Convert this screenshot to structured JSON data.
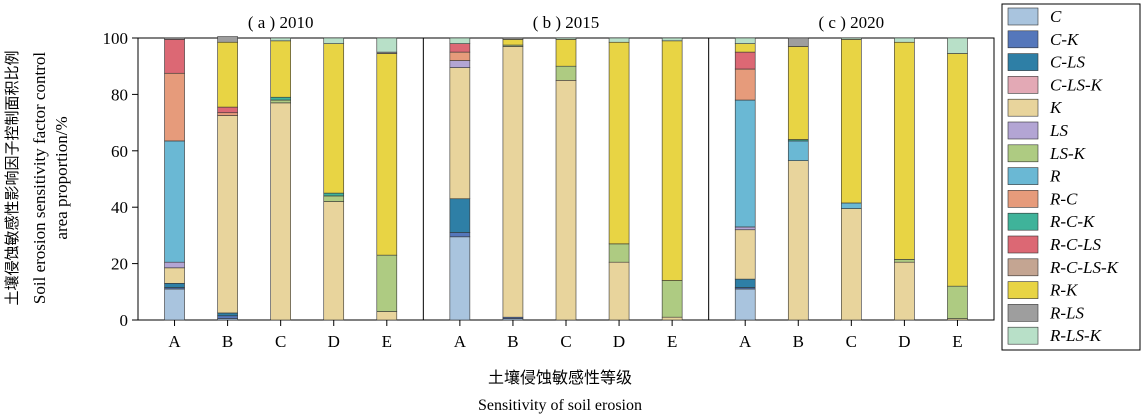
{
  "chart_data": {
    "type": "bar",
    "stacked": true,
    "ylabel_cn": "土壤侵蚀敏感性影响因子控制面积比例",
    "ylabel_en_line1": "Soil erosion sensitivity factor control",
    "ylabel_en_line2": "area proportion/%",
    "xlabel_cn": "土壤侵蚀敏感性等级",
    "xlabel_en": "Sensitivity of soil erosion",
    "ylim": [
      0,
      100
    ],
    "yticks": [
      "0",
      "20",
      "40",
      "60",
      "80",
      "100"
    ],
    "categories": [
      "A",
      "B",
      "C",
      "D",
      "E"
    ],
    "legend_placement": "right",
    "series": [
      {
        "name": "C",
        "color": "#a9c4de"
      },
      {
        "name": "C-K",
        "color": "#5577bb"
      },
      {
        "name": "C-LS",
        "color": "#2e7fa6"
      },
      {
        "name": "C-LS-K",
        "color": "#e3a9b5"
      },
      {
        "name": "K",
        "color": "#e8d49c"
      },
      {
        "name": "LS",
        "color": "#b3a5d4"
      },
      {
        "name": "LS-K",
        "color": "#aecb82"
      },
      {
        "name": "R",
        "color": "#6ab8d4"
      },
      {
        "name": "R-C",
        "color": "#e69b7b"
      },
      {
        "name": "R-C-K",
        "color": "#3fb39a"
      },
      {
        "name": "R-C-LS",
        "color": "#dc6874"
      },
      {
        "name": "R-C-LS-K",
        "color": "#c4a592"
      },
      {
        "name": "R-K",
        "color": "#e8d444"
      },
      {
        "name": "R-LS",
        "color": "#9e9e9e"
      },
      {
        "name": "R-LS-K",
        "color": "#b8e0c8"
      }
    ],
    "panels": [
      {
        "title": "( a ) 2010",
        "bars": [
          {
            "category": "A",
            "segments": {
              "C": 11,
              "C-K": 0.5,
              "C-LS": 1.5,
              "C-LS-K": 0,
              "K": 5.5,
              "LS": 2,
              "LS-K": 0,
              "R": 43,
              "R-C": 24,
              "R-C-K": 0,
              "R-C-LS": 12,
              "R-C-LS-K": 0,
              "R-K": 0,
              "R-LS": 0.5,
              "R-LS-K": 0
            }
          },
          {
            "category": "B",
            "segments": {
              "C": 0.5,
              "C-K": 1,
              "C-LS": 1,
              "C-LS-K": 0,
              "K": 70,
              "LS": 0,
              "LS-K": 0,
              "R": 0,
              "R-C": 1,
              "R-C-K": 0,
              "R-C-LS": 2,
              "R-C-LS-K": 0,
              "R-K": 23,
              "R-LS": 2,
              "R-LS-K": 0
            }
          },
          {
            "category": "C",
            "segments": {
              "C": 0,
              "C-K": 0,
              "C-LS": 0,
              "C-LS-K": 0,
              "K": 77,
              "LS": 0,
              "LS-K": 1,
              "R": 0,
              "R-C": 0,
              "R-C-K": 1,
              "R-C-LS": 0,
              "R-C-LS-K": 0,
              "R-K": 20,
              "R-LS": 0,
              "R-LS-K": 1
            }
          },
          {
            "category": "D",
            "segments": {
              "C": 0,
              "C-K": 0,
              "C-LS": 0,
              "C-LS-K": 0,
              "K": 42,
              "LS": 0,
              "LS-K": 2,
              "R": 0,
              "R-C": 0,
              "R-C-K": 1,
              "R-C-LS": 0,
              "R-C-LS-K": 0,
              "R-K": 53,
              "R-LS": 0,
              "R-LS-K": 2
            }
          },
          {
            "category": "E",
            "segments": {
              "C": 0,
              "C-K": 0,
              "C-LS": 0,
              "C-LS-K": 0,
              "K": 3,
              "LS": 0,
              "LS-K": 20,
              "R": 0,
              "R-C": 0,
              "R-C-K": 0,
              "R-C-LS": 0,
              "R-C-LS-K": 0,
              "R-K": 71.5,
              "R-LS": 0.5,
              "R-LS-K": 5
            }
          }
        ]
      },
      {
        "title": "( b ) 2015",
        "bars": [
          {
            "category": "A",
            "segments": {
              "C": 29.5,
              "C-K": 1.5,
              "C-LS": 12,
              "C-LS-K": 0,
              "K": 46.5,
              "LS": 2.5,
              "LS-K": 0,
              "R": 0,
              "R-C": 3,
              "R-C-K": 0,
              "R-C-LS": 3,
              "R-C-LS-K": 0,
              "R-K": 0,
              "R-LS": 0,
              "R-LS-K": 2
            }
          },
          {
            "category": "B",
            "segments": {
              "C": 0.5,
              "C-K": 0.5,
              "C-LS": 0,
              "C-LS-K": 0,
              "K": 96,
              "LS": 0,
              "LS-K": 0.5,
              "R": 0,
              "R-C": 0,
              "R-C-K": 0,
              "R-C-LS": 0,
              "R-C-LS-K": 0,
              "R-K": 2,
              "R-LS": 0.5,
              "R-LS-K": 0
            }
          },
          {
            "category": "C",
            "segments": {
              "C": 0,
              "C-K": 0,
              "C-LS": 0,
              "C-LS-K": 0,
              "K": 85,
              "LS": 0,
              "LS-K": 5,
              "R": 0,
              "R-C": 0,
              "R-C-K": 0,
              "R-C-LS": 0,
              "R-C-LS-K": 0,
              "R-K": 9.5,
              "R-LS": 0,
              "R-LS-K": 0.5
            }
          },
          {
            "category": "D",
            "segments": {
              "C": 0,
              "C-K": 0,
              "C-LS": 0,
              "C-LS-K": 0,
              "K": 20.5,
              "LS": 0,
              "LS-K": 6.5,
              "R": 0,
              "R-C": 0,
              "R-C-K": 0,
              "R-C-LS": 0,
              "R-C-LS-K": 0,
              "R-K": 71.5,
              "R-LS": 0,
              "R-LS-K": 1.5
            }
          },
          {
            "category": "E",
            "segments": {
              "C": 0,
              "C-K": 0,
              "C-LS": 0,
              "C-LS-K": 0,
              "K": 1,
              "LS": 0,
              "LS-K": 13,
              "R": 0,
              "R-C": 0,
              "R-C-K": 0,
              "R-C-LS": 0,
              "R-C-LS-K": 0,
              "R-K": 85,
              "R-LS": 0,
              "R-LS-K": 1
            }
          }
        ]
      },
      {
        "title": "( c ) 2020",
        "bars": [
          {
            "category": "A",
            "segments": {
              "C": 11,
              "C-K": 0.5,
              "C-LS": 3,
              "C-LS-K": 0,
              "K": 17.5,
              "LS": 1,
              "LS-K": 0,
              "R": 45,
              "R-C": 11,
              "R-C-K": 0,
              "R-C-LS": 6,
              "R-C-LS-K": 0,
              "R-K": 3,
              "R-LS": 0,
              "R-LS-K": 2
            }
          },
          {
            "category": "B",
            "segments": {
              "C": 0,
              "C-K": 0,
              "C-LS": 0,
              "C-LS-K": 0,
              "K": 56.5,
              "LS": 0,
              "LS-K": 0,
              "R": 7,
              "R-C": 0,
              "R-C-K": 0.5,
              "R-C-LS": 0,
              "R-C-LS-K": 0,
              "R-K": 33,
              "R-LS": 3,
              "R-LS-K": 0
            }
          },
          {
            "category": "C",
            "segments": {
              "C": 0,
              "C-K": 0,
              "C-LS": 0,
              "C-LS-K": 0,
              "K": 39.5,
              "LS": 0,
              "LS-K": 0,
              "R": 2,
              "R-C": 0,
              "R-C-K": 0,
              "R-C-LS": 0,
              "R-C-LS-K": 0,
              "R-K": 58,
              "R-LS": 0,
              "R-LS-K": 0.5
            }
          },
          {
            "category": "D",
            "segments": {
              "C": 0,
              "C-K": 0,
              "C-LS": 0,
              "C-LS-K": 0,
              "K": 20.5,
              "LS": 0,
              "LS-K": 1,
              "R": 0,
              "R-C": 0,
              "R-C-K": 0,
              "R-C-LS": 0,
              "R-C-LS-K": 0,
              "R-K": 77,
              "R-LS": 0,
              "R-LS-K": 1.5
            }
          },
          {
            "category": "E",
            "segments": {
              "C": 0,
              "C-K": 0,
              "C-LS": 0,
              "C-LS-K": 0,
              "K": 0.5,
              "LS": 0,
              "LS-K": 11.5,
              "R": 0,
              "R-C": 0,
              "R-C-K": 0,
              "R-C-LS": 0,
              "R-C-LS-K": 0,
              "R-K": 82.5,
              "R-LS": 0,
              "R-LS-K": 5.5
            }
          }
        ]
      }
    ]
  }
}
